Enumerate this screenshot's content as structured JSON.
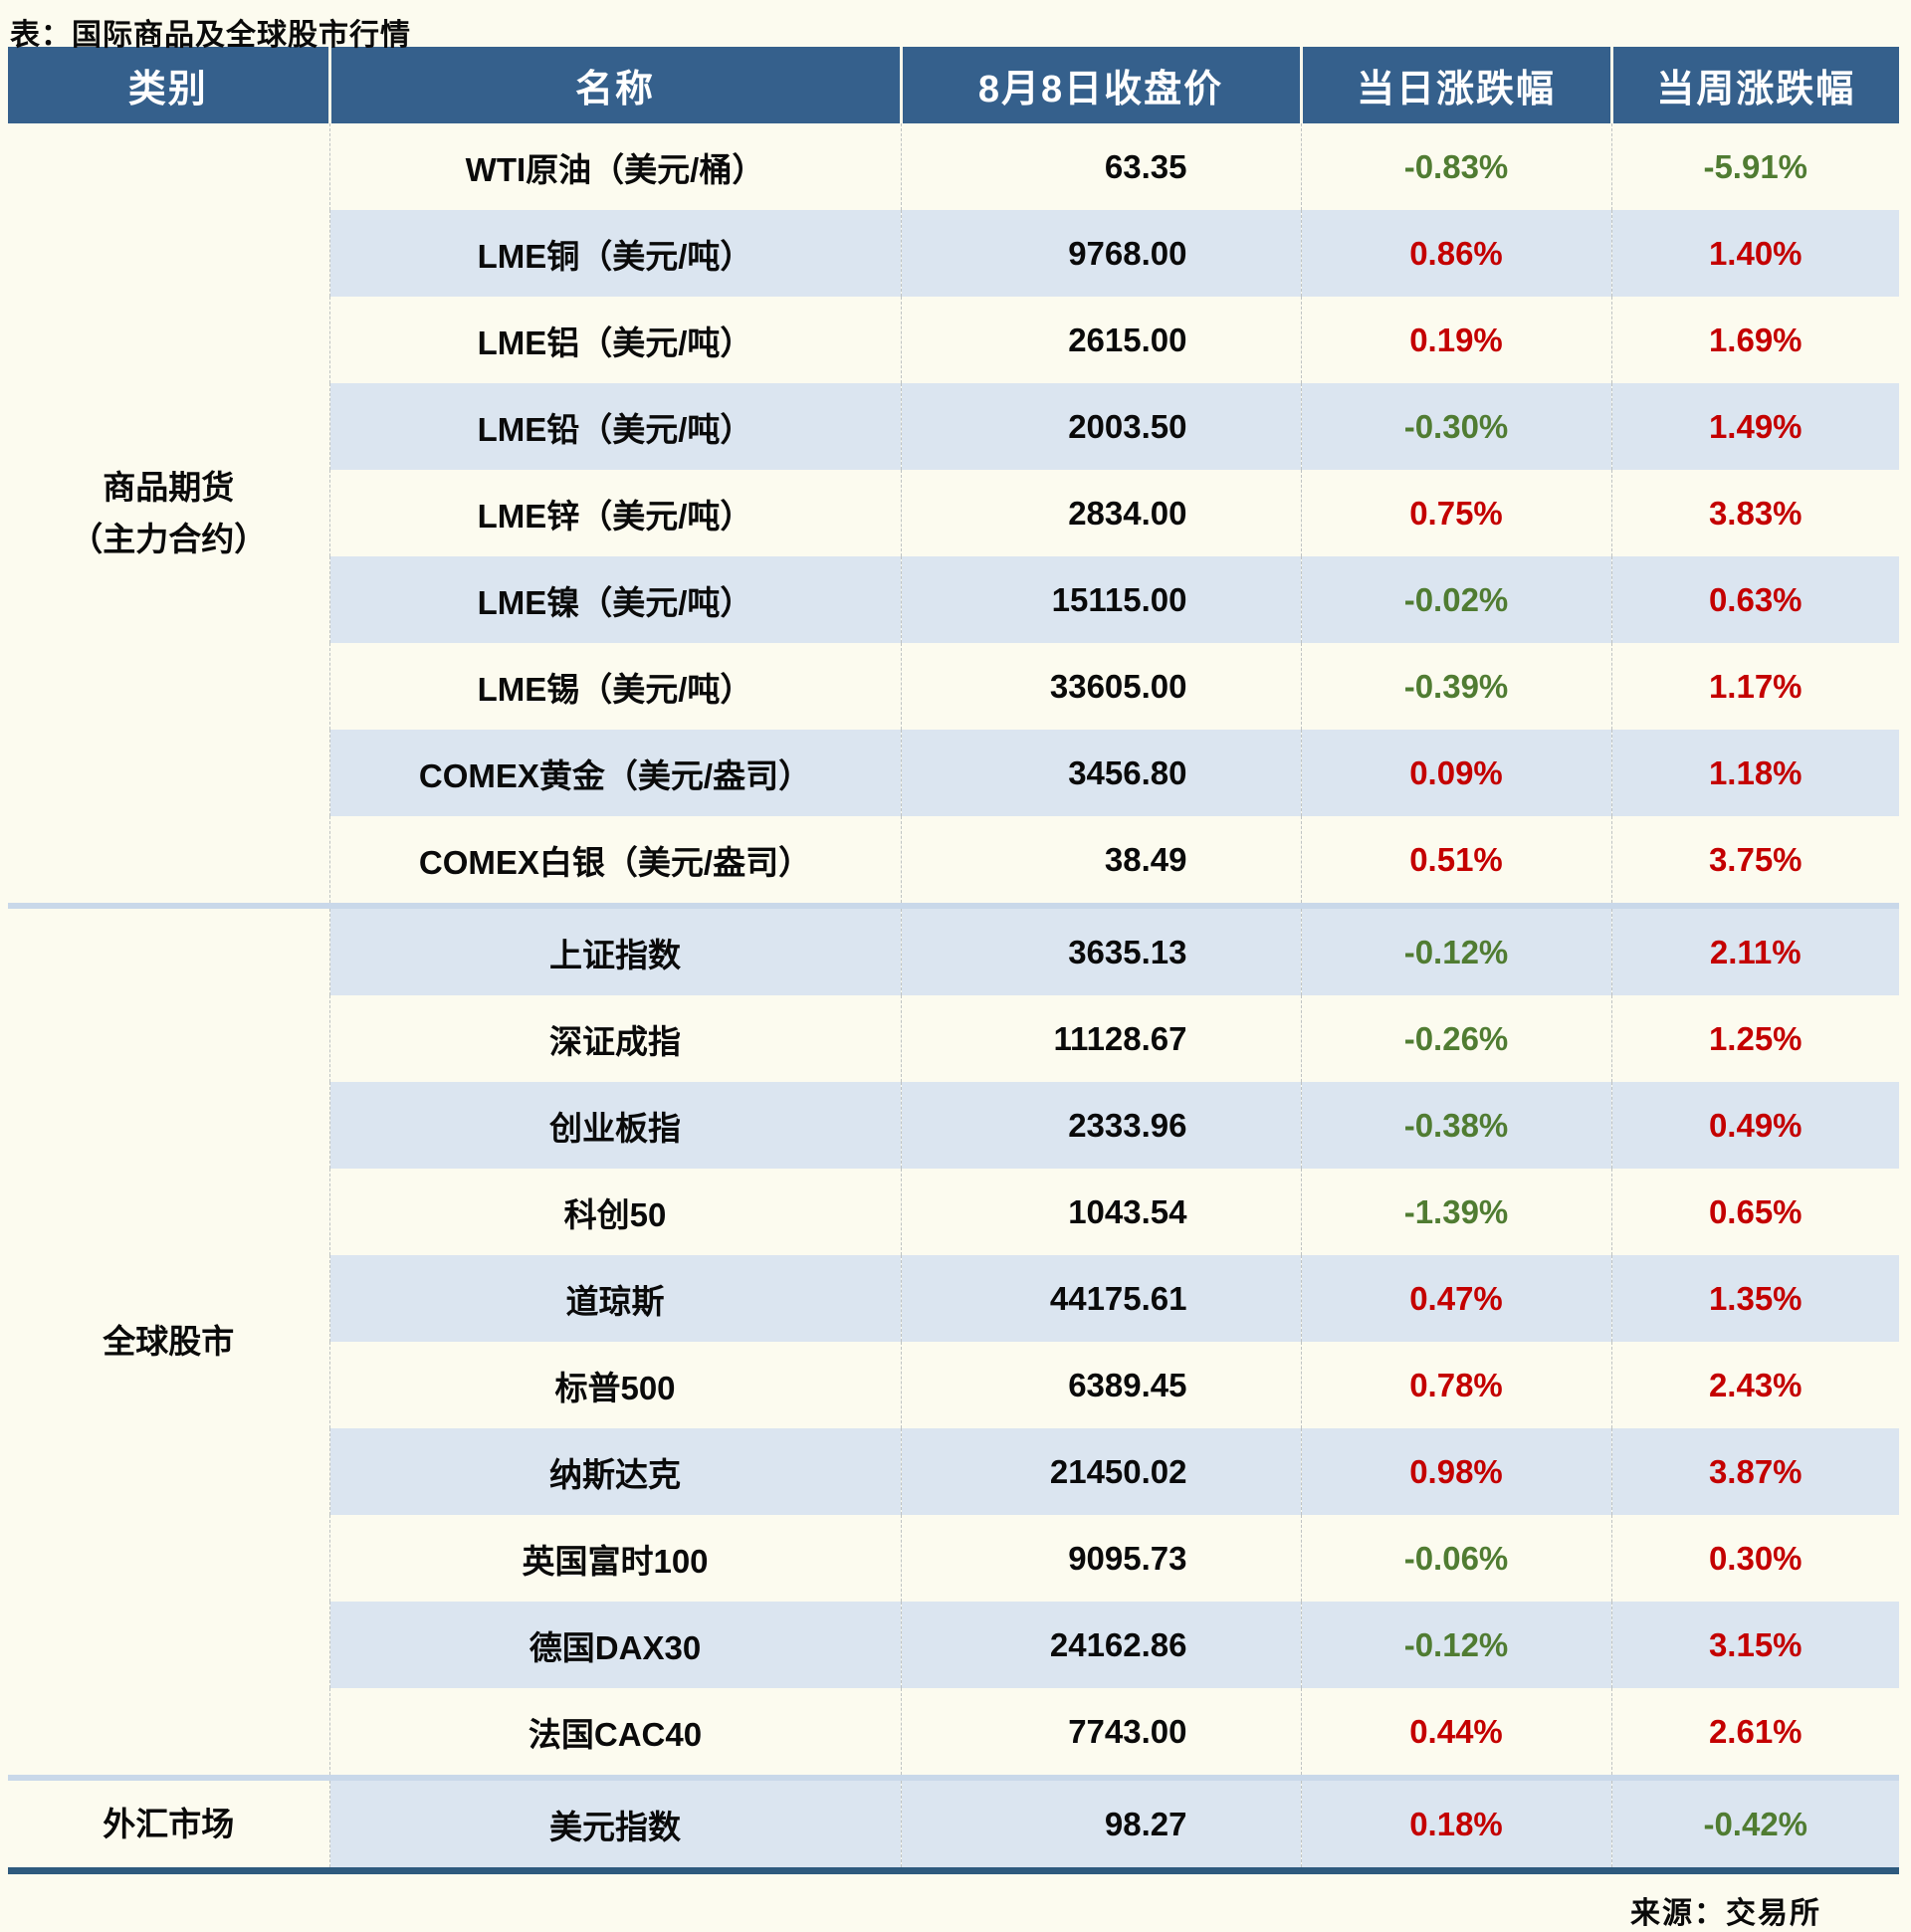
{
  "title": "表：国际商品及全球股市行情",
  "source": "来源：交易所",
  "colors": {
    "header_bg": "#35608C",
    "header_text": "#FFFFFF",
    "row_stripe": "#DBE5F0",
    "row_plain": "#FCFBEF",
    "up_red": "#C40000",
    "down_green": "#507C32",
    "section_divider": "#C9D8E9",
    "bottom_border": "#2E5A7E"
  },
  "chart_data": {
    "type": "table",
    "columns": [
      "类别",
      "名称",
      "8月8日收盘价",
      "当日涨跌幅",
      "当周涨跌幅"
    ],
    "sections": [
      {
        "category": "商品期货\n（主力合约）",
        "rows": [
          {
            "name": "WTI原油（美元/桶）",
            "close": "63.35",
            "day": "-0.83%",
            "week": "-5.91%"
          },
          {
            "name": "LME铜（美元/吨）",
            "close": "9768.00",
            "day": "0.86%",
            "week": "1.40%"
          },
          {
            "name": "LME铝（美元/吨）",
            "close": "2615.00",
            "day": "0.19%",
            "week": "1.69%"
          },
          {
            "name": "LME铅（美元/吨）",
            "close": "2003.50",
            "day": "-0.30%",
            "week": "1.49%"
          },
          {
            "name": "LME锌（美元/吨）",
            "close": "2834.00",
            "day": "0.75%",
            "week": "3.83%"
          },
          {
            "name": "LME镍（美元/吨）",
            "close": "15115.00",
            "day": "-0.02%",
            "week": "0.63%"
          },
          {
            "name": "LME锡（美元/吨）",
            "close": "33605.00",
            "day": "-0.39%",
            "week": "1.17%"
          },
          {
            "name": "COMEX黄金（美元/盎司）",
            "close": "3456.80",
            "day": "0.09%",
            "week": "1.18%"
          },
          {
            "name": "COMEX白银（美元/盎司）",
            "close": "38.49",
            "day": "0.51%",
            "week": "3.75%"
          }
        ]
      },
      {
        "category": "全球股市",
        "rows": [
          {
            "name": "上证指数",
            "close": "3635.13",
            "day": "-0.12%",
            "week": "2.11%"
          },
          {
            "name": "深证成指",
            "close": "11128.67",
            "day": "-0.26%",
            "week": "1.25%"
          },
          {
            "name": "创业板指",
            "close": "2333.96",
            "day": "-0.38%",
            "week": "0.49%"
          },
          {
            "name": "科创50",
            "close": "1043.54",
            "day": "-1.39%",
            "week": "0.65%"
          },
          {
            "name": "道琼斯",
            "close": "44175.61",
            "day": "0.47%",
            "week": "1.35%"
          },
          {
            "name": "标普500",
            "close": "6389.45",
            "day": "0.78%",
            "week": "2.43%"
          },
          {
            "name": "纳斯达克",
            "close": "21450.02",
            "day": "0.98%",
            "week": "3.87%"
          },
          {
            "name": "英国富时100",
            "close": "9095.73",
            "day": "-0.06%",
            "week": "0.30%"
          },
          {
            "name": "德国DAX30",
            "close": "24162.86",
            "day": "-0.12%",
            "week": "3.15%"
          },
          {
            "name": "法国CAC40",
            "close": "7743.00",
            "day": "0.44%",
            "week": "2.61%"
          }
        ]
      },
      {
        "category": "外汇市场",
        "rows": [
          {
            "name": "美元指数",
            "close": "98.27",
            "day": "0.18%",
            "week": "-0.42%"
          }
        ]
      }
    ]
  }
}
